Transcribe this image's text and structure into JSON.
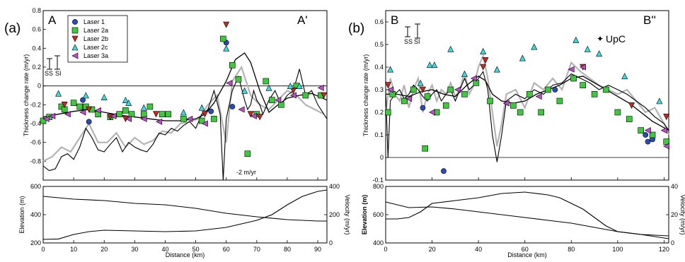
{
  "figure": {
    "panel_a_label": "(a)",
    "panel_b_label": "(b)",
    "a_left_letter": "A",
    "a_right_letter": "A'",
    "b_left_letter": "B",
    "b_right_letter": "B''",
    "upc_label": "UpC",
    "ss_label": "SS",
    "si_label": "SI",
    "annotation_a": "-2 m/yr",
    "colors": {
      "laser1": "#2a4bbd",
      "laser2a": "#3ec83e",
      "laser2b": "#c8281e",
      "laser2c": "#3ed8e0",
      "laser3a": "#c24ad0",
      "gray_trace": "#b4b4b4",
      "black_trace": "#000000"
    }
  },
  "chart_data": [
    {
      "id": "a_top",
      "type": "scatter",
      "ylabel": "Thickness change rate (m/yr)",
      "xlim": [
        0,
        93
      ],
      "ylim": [
        -1.0,
        0.8
      ],
      "x_ticks": [
        0,
        10,
        20,
        30,
        40,
        50,
        60,
        70,
        80,
        90
      ],
      "y_ticks": [
        -1,
        -0.8,
        -0.6,
        -0.4,
        -0.2,
        0,
        0.2,
        0.4,
        0.6,
        0.8
      ],
      "y_tick_labels": [
        "",
        "-0.8",
        "-0.6",
        "-0.4",
        "-0.2",
        "0",
        "0.2",
        "0.4",
        "0.6",
        "0.8"
      ],
      "legend": [
        "Laser 1",
        "Laser 2a",
        "Laser 2b",
        "Laser 2c",
        "Laser 3a"
      ],
      "series": [
        {
          "key": "laser1",
          "x": [
            13,
            15,
            55,
            60,
            62
          ],
          "y": [
            -0.15,
            -0.38,
            -0.27,
            0.46,
            -0.22
          ]
        },
        {
          "key": "laser2a",
          "x": [
            0,
            2,
            6,
            7,
            10,
            12,
            14,
            16,
            18,
            22,
            25,
            27,
            29,
            33,
            35,
            39,
            41,
            46,
            52,
            56,
            59,
            62,
            64,
            67,
            70,
            73,
            75,
            78,
            83,
            86,
            91
          ],
          "y": [
            -0.37,
            -0.33,
            -0.22,
            -0.25,
            -0.18,
            -0.22,
            -0.22,
            -0.25,
            -0.3,
            -0.33,
            -0.3,
            -0.26,
            -0.3,
            -0.3,
            -0.22,
            -0.3,
            -0.3,
            -0.35,
            -0.37,
            -0.35,
            0.5,
            0.22,
            0.07,
            -0.72,
            -0.3,
            0.05,
            -0.15,
            -0.2,
            0.0,
            -0.1,
            -0.1
          ]
        },
        {
          "key": "laser2b",
          "x": [
            7,
            15,
            22,
            27,
            37,
            53,
            60,
            68,
            71,
            82,
            92
          ],
          "y": [
            -0.2,
            -0.25,
            -0.33,
            -0.35,
            -0.3,
            -0.3,
            0.65,
            -0.3,
            -0.33,
            -0.05,
            -0.1
          ]
        },
        {
          "key": "laser2c",
          "x": [
            5,
            14,
            20,
            27,
            28,
            33,
            46,
            52,
            60,
            66,
            74,
            81,
            84
          ],
          "y": [
            -0.08,
            -0.1,
            -0.12,
            -0.15,
            -0.18,
            -0.23,
            -0.28,
            -0.23,
            0.4,
            -0.05,
            -0.02,
            0.0,
            0.0
          ]
        },
        {
          "key": "laser3a",
          "x": [
            1,
            3,
            8,
            13,
            18,
            23,
            28,
            33,
            38,
            48,
            53,
            61,
            65,
            69,
            77,
            82,
            91
          ],
          "y": [
            -0.35,
            -0.32,
            -0.3,
            -0.28,
            -0.26,
            -0.32,
            -0.35,
            -0.35,
            -0.38,
            -0.35,
            -0.4,
            0.03,
            -0.25,
            -0.32,
            -0.15,
            -0.1,
            -0.02
          ]
        }
      ],
      "smooth_line": {
        "x": [
          0,
          5,
          10,
          15,
          20,
          25,
          30,
          35,
          40,
          45,
          50,
          53,
          56,
          60,
          63,
          66,
          68,
          71,
          74,
          77,
          80,
          84,
          88,
          93
        ],
        "y": [
          -0.33,
          -0.3,
          -0.27,
          -0.25,
          -0.28,
          -0.31,
          -0.33,
          -0.35,
          -0.37,
          -0.37,
          -0.35,
          -0.3,
          -0.18,
          0.05,
          0.28,
          0.35,
          0.25,
          -0.05,
          -0.28,
          -0.2,
          -0.13,
          -0.1,
          -0.08,
          -0.15
        ]
      },
      "profile_line": {
        "x": [
          0,
          2,
          4,
          6,
          8,
          10,
          12,
          14,
          16,
          18,
          20,
          22,
          24,
          26,
          28,
          30,
          32,
          34,
          36,
          38,
          40,
          42,
          44,
          46,
          48,
          50,
          52,
          54,
          56,
          58,
          59,
          60,
          61,
          62,
          64,
          66,
          67,
          68,
          69,
          70,
          71,
          72,
          74,
          76,
          78,
          80,
          82,
          84,
          86,
          88,
          90,
          92,
          93
        ],
        "y": [
          -0.85,
          -0.9,
          -0.88,
          -0.75,
          -0.72,
          -0.78,
          -0.65,
          -0.45,
          -0.55,
          -0.68,
          -0.7,
          -0.62,
          -0.55,
          -0.7,
          -0.6,
          -0.65,
          -0.68,
          -0.7,
          -0.62,
          -0.5,
          -0.52,
          -0.45,
          -0.48,
          -0.42,
          -0.38,
          -0.45,
          -0.3,
          -0.25,
          -0.05,
          -0.3,
          -1.0,
          -0.35,
          -0.2,
          -0.05,
          0.1,
          -0.15,
          -0.25,
          -0.2,
          -0.05,
          -0.15,
          -0.2,
          -0.3,
          -0.15,
          -0.05,
          -0.2,
          -0.1,
          -0.05,
          0.18,
          -0.1,
          -0.05,
          -0.2,
          -0.3,
          -0.35
        ]
      },
      "gray_trace": {
        "x": [
          0,
          3,
          6,
          9,
          12,
          15,
          18,
          21,
          24,
          27,
          30,
          33,
          36,
          39,
          42,
          45,
          48,
          51,
          54,
          57,
          60,
          62,
          65,
          68,
          71,
          74,
          77,
          80,
          83,
          86,
          89,
          92
        ],
        "y": [
          -0.8,
          -0.75,
          -0.65,
          -0.7,
          -0.55,
          -0.4,
          -0.6,
          -0.6,
          -0.5,
          -0.65,
          -0.55,
          -0.62,
          -0.58,
          -0.48,
          -0.5,
          -0.4,
          -0.38,
          -0.35,
          -0.2,
          -0.1,
          -0.6,
          0.05,
          0.2,
          -0.1,
          -0.2,
          -0.25,
          -0.15,
          -0.05,
          -0.1,
          -0.2,
          -0.25,
          -0.3
        ]
      }
    },
    {
      "id": "a_bottom",
      "type": "line",
      "xlabel": "Distance (km)",
      "ylabel": "Elevation (m)",
      "y2label": "Velocity (m/yr)",
      "xlim": [
        0,
        93
      ],
      "ylim": [
        200,
        600
      ],
      "y2lim": [
        0,
        400
      ],
      "x_ticks": [
        0,
        10,
        20,
        30,
        40,
        50,
        60,
        70,
        80,
        90
      ],
      "y_ticks": [
        200,
        400,
        600
      ],
      "y2_ticks": [
        0,
        200,
        400
      ],
      "series": [
        {
          "name": "elevation",
          "x": [
            0,
            10,
            20,
            30,
            40,
            50,
            60,
            70,
            80,
            90,
            93
          ],
          "y": [
            530,
            510,
            500,
            480,
            470,
            445,
            410,
            385,
            365,
            355,
            355
          ]
        },
        {
          "name": "velocity",
          "x": [
            0,
            5,
            10,
            15,
            20,
            30,
            40,
            50,
            60,
            70,
            75,
            80,
            85,
            90,
            93
          ],
          "y2": [
            25,
            28,
            60,
            80,
            90,
            85,
            80,
            85,
            110,
            160,
            200,
            270,
            330,
            365,
            375
          ]
        }
      ]
    },
    {
      "id": "b_top",
      "type": "scatter",
      "ylabel": "Thickness change rate (m/yr)",
      "xlim": [
        0,
        122
      ],
      "ylim": [
        -0.1,
        0.65
      ],
      "x_ticks": [
        0,
        20,
        40,
        60,
        80,
        100,
        120
      ],
      "y_ticks": [
        -0.1,
        0,
        0.1,
        0.2,
        0.3,
        0.4,
        0.5,
        0.6
      ],
      "y_tick_labels": [
        "-0.1",
        "0",
        "0.1",
        "0.2",
        "0.3",
        "0.4",
        "0.5",
        "0.6"
      ],
      "series": [
        {
          "key": "laser1",
          "x": [
            16,
            25,
            73,
            112,
            113,
            115
          ],
          "y": [
            0.22,
            -0.06,
            0.3,
            0.1,
            0.07,
            0.08
          ]
        },
        {
          "key": "laser2a",
          "x": [
            1,
            3,
            8,
            12,
            17,
            18,
            22,
            26,
            28,
            34,
            39,
            45,
            55,
            58,
            62,
            67,
            70,
            75,
            81,
            85,
            90,
            95,
            100,
            105,
            110,
            115,
            121
          ],
          "y": [
            0.2,
            0.28,
            0.25,
            0.3,
            0.04,
            0.27,
            0.2,
            0.23,
            0.3,
            0.28,
            0.33,
            0.25,
            0.23,
            0.2,
            0.28,
            0.2,
            0.3,
            0.25,
            0.35,
            0.32,
            0.28,
            0.3,
            0.2,
            0.17,
            0.12,
            0.1,
            0.07
          ]
        },
        {
          "key": "laser2b",
          "x": [
            1,
            16,
            42,
            43,
            85,
            106,
            121
          ],
          "y": [
            0.32,
            0.3,
            0.4,
            0.43,
            0.4,
            0.23,
            0.18
          ]
        },
        {
          "key": "laser2c",
          "x": [
            2,
            15,
            19,
            21,
            28,
            34,
            42,
            48,
            59,
            64,
            82,
            87,
            92,
            103,
            118
          ],
          "y": [
            0.39,
            0.33,
            0.41,
            0.41,
            0.48,
            0.37,
            0.47,
            0.39,
            0.44,
            0.49,
            0.52,
            0.48,
            0.46,
            0.36,
            0.25
          ]
        },
        {
          "key": "laser3a",
          "x": [
            2,
            10,
            20,
            31,
            38,
            52,
            66,
            80,
            85,
            113,
            120,
            121
          ],
          "y": [
            0.3,
            0.26,
            0.2,
            0.3,
            0.35,
            0.24,
            0.27,
            0.39,
            0.4,
            0.12,
            0.12,
            0.05
          ]
        }
      ],
      "smooth_line": {
        "x": [
          0,
          5,
          10,
          15,
          20,
          25,
          30,
          35,
          40,
          43,
          46,
          50,
          55,
          60,
          65,
          70,
          75,
          80,
          85,
          90,
          95,
          100,
          105,
          110,
          115,
          122
        ],
        "y": [
          0.28,
          0.28,
          0.27,
          0.29,
          0.3,
          0.28,
          0.27,
          0.32,
          0.36,
          0.34,
          0.28,
          0.25,
          0.24,
          0.25,
          0.28,
          0.3,
          0.32,
          0.35,
          0.36,
          0.33,
          0.3,
          0.27,
          0.24,
          0.2,
          0.16,
          0.12
        ]
      },
      "profile_line": {
        "x": [
          0,
          1,
          2,
          4,
          6,
          8,
          10,
          12,
          14,
          16,
          18,
          20,
          22,
          24,
          26,
          28,
          30,
          32,
          34,
          36,
          38,
          40,
          42,
          44,
          46,
          48,
          50,
          52,
          56,
          60,
          64,
          68,
          72,
          76,
          80,
          84,
          88,
          92,
          96,
          100,
          104,
          108,
          112,
          116,
          120,
          122
        ],
        "y": [
          0.3,
          0.0,
          0.25,
          0.28,
          0.3,
          0.26,
          0.28,
          0.32,
          0.3,
          0.27,
          0.25,
          0.28,
          0.3,
          0.25,
          0.28,
          0.3,
          0.25,
          0.3,
          0.35,
          0.3,
          0.32,
          0.35,
          0.38,
          0.3,
          0.1,
          -0.02,
          0.1,
          0.25,
          0.28,
          0.26,
          0.3,
          0.28,
          0.32,
          0.33,
          0.37,
          0.35,
          0.33,
          0.3,
          0.32,
          0.3,
          0.28,
          0.25,
          0.22,
          0.18,
          0.15,
          0.12
        ]
      },
      "gray_trace": {
        "x": [
          0,
          2,
          4,
          6,
          8,
          10,
          12,
          14,
          16,
          18,
          20,
          22,
          24,
          26,
          28,
          30,
          32,
          34,
          36,
          38,
          40,
          42,
          44,
          46,
          48,
          50,
          52,
          56,
          60,
          64,
          68,
          72,
          76,
          80,
          84,
          88,
          92,
          96,
          100,
          104,
          108,
          112,
          116,
          120,
          122
        ],
        "y": [
          0.2,
          0.35,
          0.28,
          0.25,
          0.32,
          0.22,
          0.3,
          0.35,
          0.2,
          0.28,
          0.32,
          0.25,
          0.3,
          0.28,
          0.33,
          0.27,
          0.3,
          0.38,
          0.28,
          0.32,
          0.4,
          0.45,
          0.35,
          0.2,
          0.05,
          0.15,
          0.28,
          0.3,
          0.22,
          0.33,
          0.3,
          0.35,
          0.3,
          0.42,
          0.38,
          0.35,
          0.32,
          0.3,
          0.28,
          0.3,
          0.25,
          0.2,
          0.22,
          0.15,
          0.1
        ]
      }
    },
    {
      "id": "b_bottom",
      "type": "line",
      "xlabel": "Distance (km)",
      "ylabel": "Elevation (m)",
      "y2label": "Velocity (m/yr)",
      "xlim": [
        0,
        122
      ],
      "ylim": [
        400,
        800
      ],
      "y2lim": [
        0,
        40
      ],
      "x_ticks": [
        0,
        20,
        40,
        60,
        80,
        100,
        120
      ],
      "y_ticks": [
        400,
        600,
        800
      ],
      "y2_ticks": [
        0,
        20,
        40
      ],
      "series": [
        {
          "name": "elevation",
          "x": [
            0,
            10,
            20,
            30,
            40,
            50,
            60,
            70,
            80,
            90,
            100,
            110,
            122
          ],
          "y": [
            690,
            650,
            655,
            640,
            620,
            600,
            580,
            560,
            540,
            510,
            480,
            460,
            430
          ]
        },
        {
          "name": "velocity",
          "x": [
            0,
            5,
            10,
            15,
            20,
            30,
            40,
            50,
            60,
            70,
            75,
            80,
            85,
            90,
            95,
            100,
            110,
            122
          ],
          "y2": [
            17,
            17,
            18,
            22,
            28,
            30,
            32,
            35,
            36,
            34,
            32,
            28,
            24,
            18,
            12,
            8,
            6,
            5
          ]
        }
      ]
    }
  ]
}
